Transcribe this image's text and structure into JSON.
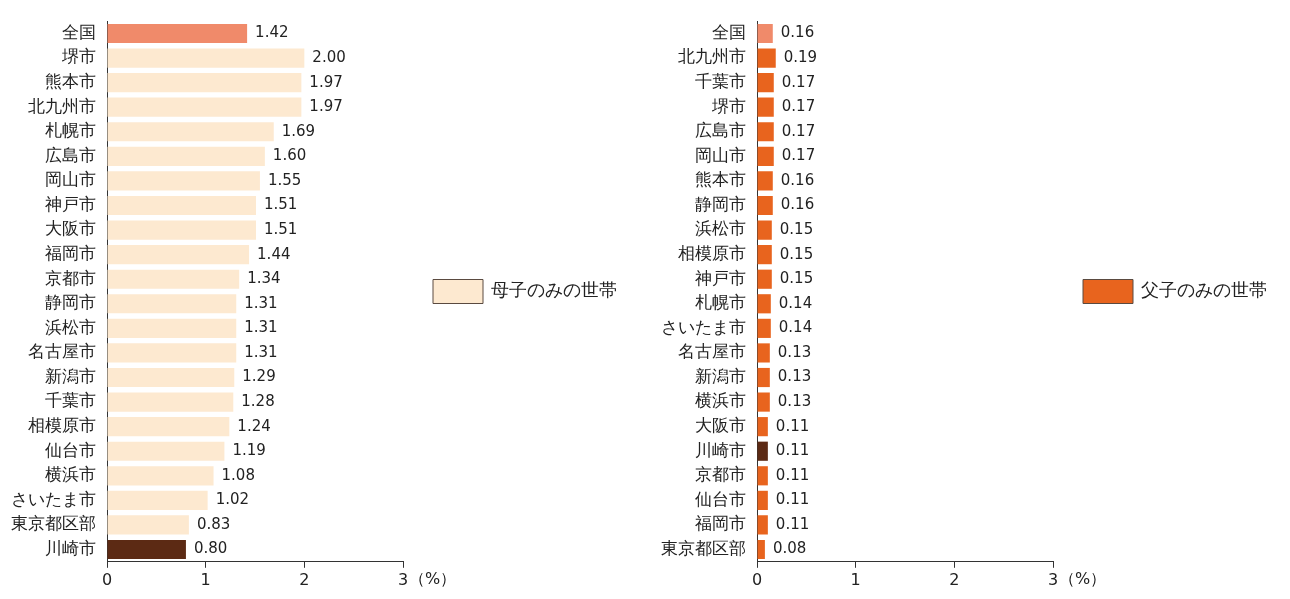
{
  "chart_data": [
    {
      "type": "bar",
      "orientation": "horizontal",
      "xlabel": "（%）",
      "categories": [
        "全国",
        "堺市",
        "熊本市",
        "北九州市",
        "札幌市",
        "広島市",
        "岡山市",
        "神戸市",
        "大阪市",
        "福岡市",
        "京都市",
        "静岡市",
        "浜松市",
        "名古屋市",
        "新潟市",
        "千葉市",
        "相模原市",
        "仙台市",
        "横浜市",
        "さいたま市",
        "東京都区部",
        "川崎市"
      ],
      "series": [
        {
          "name": "母子のみの世帯",
          "color": "#fde9d0",
          "values": [
            1.42,
            2.0,
            1.97,
            1.97,
            1.69,
            1.6,
            1.55,
            1.51,
            1.51,
            1.44,
            1.34,
            1.31,
            1.31,
            1.31,
            1.29,
            1.28,
            1.24,
            1.19,
            1.08,
            1.02,
            0.83,
            0.8
          ],
          "colors": [
            "#f08a6a",
            "#fde9d0",
            "#fde9d0",
            "#fde9d0",
            "#fde9d0",
            "#fde9d0",
            "#fde9d0",
            "#fde9d0",
            "#fde9d0",
            "#fde9d0",
            "#fde9d0",
            "#fde9d0",
            "#fde9d0",
            "#fde9d0",
            "#fde9d0",
            "#fde9d0",
            "#fde9d0",
            "#fde9d0",
            "#fde9d0",
            "#fde9d0",
            "#fde9d0",
            "#5c2a14"
          ],
          "value_labels": [
            "1.42",
            "2.00",
            "1.97",
            "1.97",
            "1.69",
            "1.60",
            "1.55",
            "1.51",
            "1.51",
            "1.44",
            "1.34",
            "1.31",
            "1.31",
            "1.31",
            "1.29",
            "1.28",
            "1.24",
            "1.19",
            "1.08",
            "1.02",
            "0.83",
            "0.80"
          ]
        }
      ],
      "xlim": [
        0,
        3
      ],
      "xticks": [
        0,
        1,
        2,
        3
      ],
      "grid": false,
      "legend": "right"
    },
    {
      "type": "bar",
      "orientation": "horizontal",
      "xlabel": "（%）",
      "categories": [
        "全国",
        "北九州市",
        "千葉市",
        "堺市",
        "広島市",
        "岡山市",
        "熊本市",
        "静岡市",
        "浜松市",
        "相模原市",
        "神戸市",
        "札幌市",
        "さいたま市",
        "名古屋市",
        "新潟市",
        "横浜市",
        "大阪市",
        "川崎市",
        "京都市",
        "仙台市",
        "福岡市",
        "東京都区部"
      ],
      "series": [
        {
          "name": "父子のみの世帯",
          "color": "#e8641e",
          "values": [
            0.16,
            0.19,
            0.17,
            0.17,
            0.17,
            0.17,
            0.16,
            0.16,
            0.15,
            0.15,
            0.15,
            0.14,
            0.14,
            0.13,
            0.13,
            0.13,
            0.11,
            0.11,
            0.11,
            0.11,
            0.11,
            0.08
          ],
          "colors": [
            "#f08a6a",
            "#e8641e",
            "#e8641e",
            "#e8641e",
            "#e8641e",
            "#e8641e",
            "#e8641e",
            "#e8641e",
            "#e8641e",
            "#e8641e",
            "#e8641e",
            "#e8641e",
            "#e8641e",
            "#e8641e",
            "#e8641e",
            "#e8641e",
            "#e8641e",
            "#5c2a14",
            "#e8641e",
            "#e8641e",
            "#e8641e",
            "#e8641e"
          ],
          "value_labels": [
            "0.16",
            "0.19",
            "0.17",
            "0.17",
            "0.17",
            "0.17",
            "0.16",
            "0.16",
            "0.15",
            "0.15",
            "0.15",
            "0.14",
            "0.14",
            "0.13",
            "0.13",
            "0.13",
            "0.11",
            "0.11",
            "0.11",
            "0.11",
            "0.11",
            "0.08"
          ]
        }
      ],
      "xlim": [
        0,
        3
      ],
      "xticks": [
        0,
        1,
        2,
        3
      ],
      "grid": false,
      "legend": "right"
    }
  ]
}
